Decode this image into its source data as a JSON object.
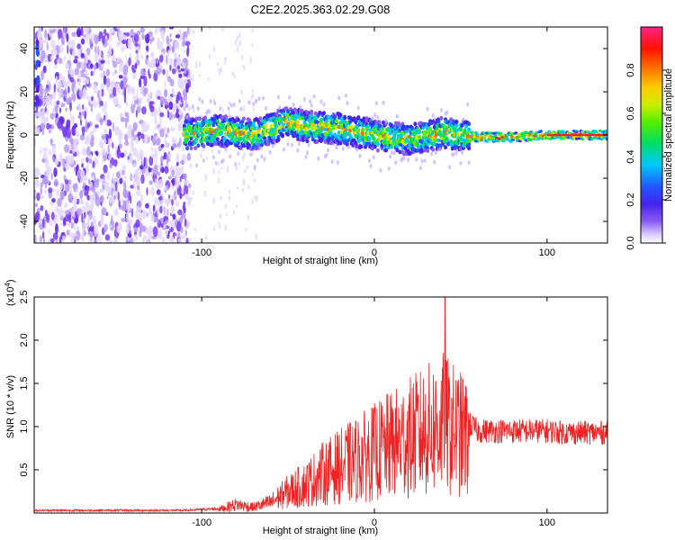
{
  "title": "C2E2.2025.363.02.29.G08",
  "chart_data": [
    {
      "type": "heatmap",
      "xlabel": "Height of straight line (km)",
      "ylabel": "Frequency (Hz)",
      "xlim": [
        -197,
        135
      ],
      "ylim": [
        -50,
        50
      ],
      "xticks": [
        -100,
        0,
        100
      ],
      "yticks": [
        -40,
        -20,
        0,
        20,
        40
      ],
      "colorbar": {
        "label": "Normalized spectral amplitude",
        "range": [
          0,
          1
        ],
        "ticks": [
          "0.0",
          "0.2",
          "0.4",
          "0.6",
          "0.8"
        ],
        "tick_values": [
          0.0,
          0.2,
          0.4,
          0.6,
          0.8
        ]
      },
      "ridge": {
        "x": [
          -110,
          -90,
          -70,
          -60,
          -50,
          -40,
          -20,
          0,
          20,
          40,
          60,
          80,
          100,
          135
        ],
        "y": [
          0,
          2,
          0,
          3,
          6,
          4,
          3,
          0,
          -2,
          1,
          -1,
          -1,
          0,
          0
        ]
      },
      "noise_region_xmax": -107
    },
    {
      "type": "line",
      "xlabel": "Height of straight line (km)",
      "ylabel": "SNR (10 * v/v)",
      "yscale_label": "(x10",
      "yscale_exp": "4",
      "yscale_close": ")",
      "xlim": [
        -197,
        135
      ],
      "ylim": [
        0,
        2.5
      ],
      "xticks": [
        -100,
        0,
        100
      ],
      "yticks": [
        0.5,
        1.0,
        1.5,
        2.0,
        2.5
      ],
      "ytick_labels": [
        "0.5",
        "1.0",
        "1.5",
        "2.0",
        "2.5"
      ],
      "series": [
        {
          "color": "#ee2222",
          "envelope_x": [
            -197,
            -110,
            -90,
            -80,
            -70,
            -60,
            -50,
            -40,
            -30,
            -20,
            -10,
            0,
            10,
            20,
            30,
            40,
            50,
            60,
            70,
            80,
            90,
            100,
            110,
            120,
            135
          ],
          "envelope_y": [
            0.03,
            0.03,
            0.05,
            0.12,
            0.08,
            0.15,
            0.3,
            0.4,
            0.55,
            0.65,
            0.75,
            0.85,
            0.95,
            1.05,
            1.15,
            1.25,
            1.1,
            0.95,
            0.95,
            0.95,
            0.95,
            0.95,
            0.93,
            0.93,
            0.93
          ],
          "peak_x": 41,
          "peak_y": 2.5
        }
      ]
    }
  ]
}
